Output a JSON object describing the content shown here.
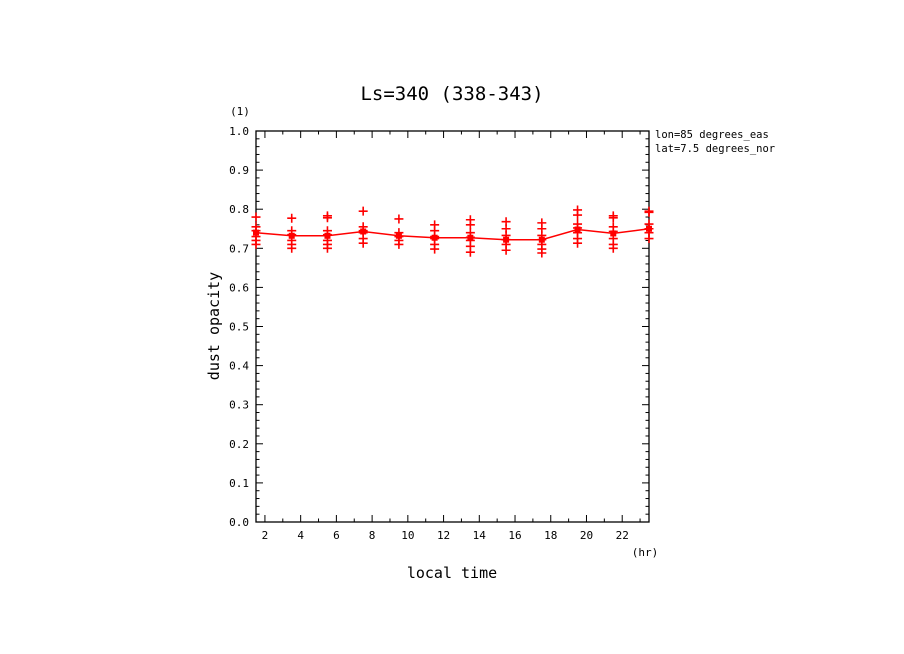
{
  "chart_data": {
    "type": "scatter",
    "title": "Ls=340 (338-343)",
    "xlabel": "local time",
    "ylabel": "dust opacity",
    "x_unit": "(hr)",
    "y_unit": "(1)",
    "xlim": [
      1.5,
      23.5
    ],
    "ylim": [
      0.0,
      1.0
    ],
    "x_ticks": [
      2,
      4,
      6,
      8,
      10,
      12,
      14,
      16,
      18,
      20,
      22
    ],
    "y_ticks": [
      0.0,
      0.1,
      0.2,
      0.3,
      0.4,
      0.5,
      0.6,
      0.7,
      0.8,
      0.9,
      1.0
    ],
    "y_tick_labels": [
      "0.0",
      "0.1",
      "0.2",
      "0.3",
      "0.4",
      "0.5",
      "0.6",
      "0.7",
      "0.8",
      "0.9",
      "1.0"
    ],
    "annotations": [
      "lon=85 degrees_eas",
      "lat=7.5 degrees_nor"
    ],
    "colors": {
      "series": "#ff0000",
      "axes": "#000000"
    },
    "mean_series": {
      "x": [
        1.5,
        3.5,
        5.5,
        7.5,
        9.5,
        11.5,
        13.5,
        15.5,
        17.5,
        19.5,
        21.5,
        23.5
      ],
      "y": [
        0.74,
        0.732,
        0.732,
        0.743,
        0.732,
        0.727,
        0.727,
        0.722,
        0.722,
        0.748,
        0.738,
        0.75
      ]
    },
    "samples": [
      {
        "x": 1.5,
        "y": [
          0.78,
          0.755,
          0.745,
          0.73,
          0.72,
          0.71
        ]
      },
      {
        "x": 3.5,
        "y": [
          0.777,
          0.745,
          0.735,
          0.72,
          0.71,
          0.7
        ]
      },
      {
        "x": 5.5,
        "y": [
          0.783,
          0.778,
          0.745,
          0.735,
          0.72,
          0.71,
          0.7
        ]
      },
      {
        "x": 7.5,
        "y": [
          0.795,
          0.755,
          0.745,
          0.74,
          0.725,
          0.713
        ]
      },
      {
        "x": 9.5,
        "y": [
          0.775,
          0.74,
          0.73,
          0.72,
          0.71
        ]
      },
      {
        "x": 11.5,
        "y": [
          0.76,
          0.745,
          0.73,
          0.725,
          0.71,
          0.698
        ]
      },
      {
        "x": 13.5,
        "y": [
          0.773,
          0.76,
          0.74,
          0.728,
          0.72,
          0.705,
          0.69
        ]
      },
      {
        "x": 15.5,
        "y": [
          0.768,
          0.75,
          0.733,
          0.722,
          0.71,
          0.695
        ]
      },
      {
        "x": 17.5,
        "y": [
          0.765,
          0.75,
          0.733,
          0.722,
          0.71,
          0.698,
          0.688
        ]
      },
      {
        "x": 19.5,
        "y": [
          0.798,
          0.785,
          0.762,
          0.752,
          0.74,
          0.725,
          0.713
        ]
      },
      {
        "x": 21.5,
        "y": [
          0.783,
          0.778,
          0.755,
          0.743,
          0.725,
          0.71,
          0.7
        ]
      },
      {
        "x": 23.5,
        "y": [
          0.795,
          0.792,
          0.762,
          0.75,
          0.74,
          0.725
        ]
      }
    ]
  }
}
